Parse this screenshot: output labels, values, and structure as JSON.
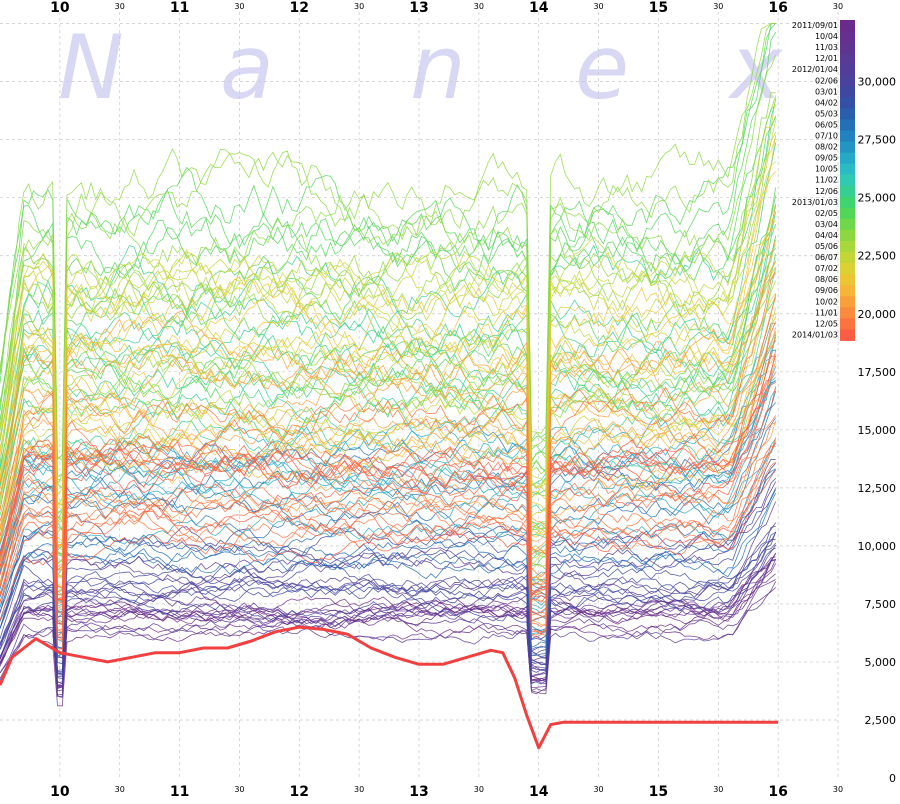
{
  "watermark": [
    "N",
    "a",
    "n",
    "e",
    "x"
  ],
  "chart_data": {
    "type": "line",
    "title": "",
    "xlabel": "",
    "ylabel": "",
    "x_hour_ticks": [
      "10",
      "11",
      "12",
      "13",
      "14",
      "15",
      "16"
    ],
    "x_half_hour_label": "30",
    "y_ticks": [
      "0",
      "2,500",
      "5,000",
      "7,500",
      "10,000",
      "12,500",
      "15,000",
      "17,500",
      "20,000",
      "22,500",
      "25,000",
      "27,500",
      "30,000"
    ],
    "ylim": [
      0,
      33000
    ],
    "xlim_hours": [
      9.5,
      16.5
    ],
    "grid": true,
    "legend_placement": "top-right",
    "legend": [
      {
        "label": "2011/09/01",
        "color": "#6a2c8a"
      },
      {
        "label": "10/04",
        "color": "#66308e"
      },
      {
        "label": "11/03",
        "color": "#603591"
      },
      {
        "label": "12/01",
        "color": "#593a95"
      },
      {
        "label": "2012/01/04",
        "color": "#523e99"
      },
      {
        "label": "02/06",
        "color": "#4a429d"
      },
      {
        "label": "03/01",
        "color": "#3f47a1"
      },
      {
        "label": "04/02",
        "color": "#354fa6"
      },
      {
        "label": "05/03",
        "color": "#2b5fae"
      },
      {
        "label": "06/05",
        "color": "#2470b6"
      },
      {
        "label": "07/10",
        "color": "#2182bd"
      },
      {
        "label": "08/02",
        "color": "#2295c3"
      },
      {
        "label": "09/05",
        "color": "#24a9c6"
      },
      {
        "label": "10/05",
        "color": "#2abcc5"
      },
      {
        "label": "11/02",
        "color": "#30c9b2"
      },
      {
        "label": "12/06",
        "color": "#36cf92"
      },
      {
        "label": "2013/01/03",
        "color": "#3fd371"
      },
      {
        "label": "02/05",
        "color": "#52d659"
      },
      {
        "label": "03/04",
        "color": "#6fd74a"
      },
      {
        "label": "04/04",
        "color": "#8dd840"
      },
      {
        "label": "05/06",
        "color": "#a9d83a"
      },
      {
        "label": "06/07",
        "color": "#c4d636"
      },
      {
        "label": "07/02",
        "color": "#dbd135"
      },
      {
        "label": "08/06",
        "color": "#ecc535"
      },
      {
        "label": "09/06",
        "color": "#f6b537"
      },
      {
        "label": "10/02",
        "color": "#f9a03a"
      },
      {
        "label": "11/01",
        "color": "#fa8b3d"
      },
      {
        "label": "12/05",
        "color": "#fb7440"
      },
      {
        "label": "2014/01/03",
        "color": "#fb5c44"
      }
    ],
    "highlight_series": {
      "name": "2014/01/03",
      "color": "#f24040",
      "x_hours": [
        9.5,
        9.6,
        9.7,
        9.8,
        9.9,
        10.0,
        10.2,
        10.4,
        10.6,
        10.8,
        11.0,
        11.2,
        11.4,
        11.6,
        11.8,
        12.0,
        12.2,
        12.4,
        12.6,
        12.8,
        13.0,
        13.2,
        13.4,
        13.6,
        13.7,
        13.8,
        13.9,
        14.0,
        14.1,
        14.2,
        14.5,
        15.0,
        15.5,
        16.0
      ],
      "values": [
        4000,
        5200,
        5600,
        6000,
        5700,
        5400,
        5200,
        5000,
        5200,
        5400,
        5400,
        5600,
        5600,
        5900,
        6300,
        6500,
        6400,
        6200,
        5600,
        5200,
        4900,
        4900,
        5200,
        5500,
        5400,
        4300,
        2700,
        1300,
        2300,
        2400,
        2400,
        2400,
        2400,
        2400
      ]
    },
    "series_groups": [
      {
        "color": "#6a2c8a",
        "level": 6500
      },
      {
        "color": "#593a95",
        "level": 7800
      },
      {
        "color": "#3f47a1",
        "level": 8800
      },
      {
        "color": "#2470b6",
        "level": 11500
      },
      {
        "color": "#24a9c6",
        "level": 13500
      },
      {
        "color": "#36cf92",
        "level": 18000
      },
      {
        "color": "#52d659",
        "level": 20500
      },
      {
        "color": "#8dd840",
        "level": 21000
      },
      {
        "color": "#c4d636",
        "level": 18000
      },
      {
        "color": "#ecc535",
        "level": 16500
      },
      {
        "color": "#f9a03a",
        "level": 15000
      },
      {
        "color": "#fb7440",
        "level": 13500
      },
      {
        "color": "#fb5c44",
        "level": 12000
      }
    ]
  }
}
